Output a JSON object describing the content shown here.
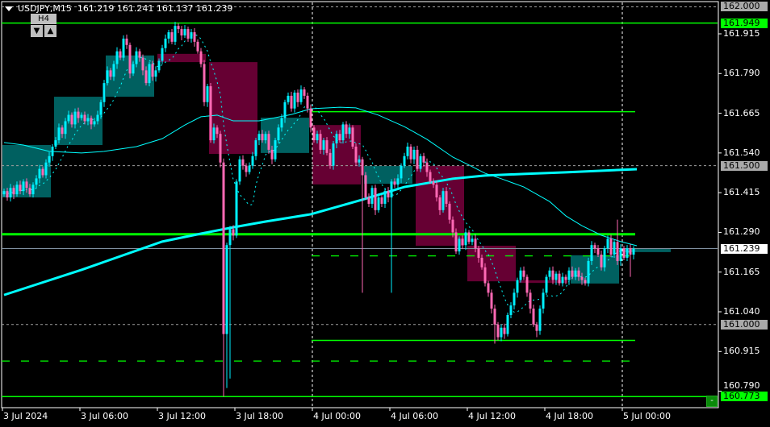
{
  "header": {
    "symbol": "USDJPY,M15",
    "open": "161.219",
    "high": "161.241",
    "low": "161.137",
    "close": "161.239"
  },
  "timeframe_widget": {
    "label": "H4",
    "down": "▼",
    "up": "▲"
  },
  "colors": {
    "bull": "#00f0ff",
    "bear": "#ff69b4",
    "box_bull": "#006060",
    "box_bear": "#660033",
    "level": "#00ff00",
    "grid": "#a0a0a0",
    "ma": "#00ffff"
  },
  "price_axis": {
    "ticks": [
      "161.915",
      "161.790",
      "161.665",
      "161.540",
      "161.415",
      "161.290",
      "161.165",
      "161.040",
      "160.915",
      "160.790"
    ],
    "markers": [
      {
        "value": "162.000",
        "style": "gray"
      },
      {
        "value": "161.949",
        "style": "green"
      },
      {
        "value": "161.500",
        "style": "gray"
      },
      {
        "value": "161.239",
        "style": "white"
      },
      {
        "value": "161.000",
        "style": "gray"
      },
      {
        "value": "160.773",
        "style": "green"
      }
    ]
  },
  "time_axis": [
    {
      "label": "3 Jul 2024",
      "bar": 0
    },
    {
      "label": "3 Jul 06:00",
      "bar": 24
    },
    {
      "label": "3 Jul 12:00",
      "bar": 48
    },
    {
      "label": "3 Jul 18:00",
      "bar": 72
    },
    {
      "label": "4 Jul 00:00",
      "bar": 96
    },
    {
      "label": "4 Jul 06:00",
      "bar": 120
    },
    {
      "label": "4 Jul 12:00",
      "bar": 144
    },
    {
      "label": "4 Jul 18:00",
      "bar": 168
    },
    {
      "label": "5 Jul 00:00",
      "bar": 192
    }
  ],
  "minus_button": "-",
  "chart_data": {
    "type": "candlestick",
    "start_open": 161.41,
    "closes": [
      161.42,
      161.4,
      161.43,
      161.41,
      161.44,
      161.42,
      161.45,
      161.43,
      161.41,
      161.44,
      161.46,
      161.49,
      161.47,
      161.51,
      161.53,
      161.56,
      161.58,
      161.62,
      161.6,
      161.64,
      161.66,
      161.63,
      161.67,
      161.65,
      161.66,
      161.64,
      161.65,
      161.63,
      161.64,
      161.66,
      161.7,
      161.76,
      161.8,
      161.78,
      161.82,
      161.86,
      161.84,
      161.9,
      161.88,
      161.79,
      161.82,
      161.86,
      161.84,
      161.8,
      161.76,
      161.82,
      161.78,
      161.8,
      161.83,
      161.87,
      161.9,
      161.92,
      161.89,
      161.94,
      161.93,
      161.91,
      161.93,
      161.9,
      161.92,
      161.89,
      161.86,
      161.82,
      161.7,
      161.75,
      161.58,
      161.62,
      161.6,
      161.51,
      160.97,
      161.25,
      161.3,
      161.28,
      161.45,
      161.52,
      161.5,
      161.48,
      161.5,
      161.53,
      161.58,
      161.6,
      161.58,
      161.6,
      161.55,
      161.52,
      161.58,
      161.62,
      161.65,
      161.7,
      161.72,
      161.68,
      161.73,
      161.7,
      161.74,
      161.72,
      161.68,
      161.62,
      161.58,
      161.6,
      161.55,
      161.58,
      161.54,
      161.5,
      161.57,
      161.6,
      161.58,
      161.63,
      161.6,
      161.62,
      161.56,
      161.51,
      161.52,
      161.47,
      161.4,
      161.38,
      161.43,
      161.36,
      161.4,
      161.38,
      161.42,
      161.4,
      161.45,
      161.44,
      161.46,
      161.5,
      161.53,
      161.56,
      161.52,
      161.55,
      161.49,
      161.53,
      161.51,
      161.48,
      161.45,
      161.44,
      161.4,
      161.36,
      161.42,
      161.38,
      161.33,
      161.29,
      161.23,
      161.27,
      161.25,
      161.29,
      161.26,
      161.27,
      161.24,
      161.21,
      161.18,
      161.13,
      161.1,
      161.05,
      161.0,
      160.96,
      160.99,
      160.97,
      161.03,
      161.06,
      161.1,
      161.14,
      161.17,
      161.15,
      161.1,
      161.05,
      161.0,
      160.98,
      161.05,
      161.1,
      161.15,
      161.17,
      161.14,
      161.16,
      161.13,
      161.15,
      161.14,
      161.17,
      161.15,
      161.17,
      161.15,
      161.14,
      161.13,
      161.2,
      161.25,
      161.24,
      161.22,
      161.18,
      161.24,
      161.27,
      161.22,
      161.26,
      161.2,
      161.24,
      161.21,
      161.24,
      161.22,
      161.239
    ],
    "wick_extremes": [
      {
        "bar": 68,
        "low": 160.773
      },
      {
        "bar": 69,
        "low": 160.8
      },
      {
        "bar": 70,
        "low": 160.83
      },
      {
        "bar": 111,
        "low": 161.1
      },
      {
        "bar": 120,
        "low": 161.1
      },
      {
        "bar": 152,
        "low": 160.94
      },
      {
        "bar": 165,
        "low": 160.96
      },
      {
        "bar": 190,
        "high": 161.33
      },
      {
        "bar": 194,
        "low": 161.15
      }
    ],
    "h4_boxes": [
      {
        "bar": 0,
        "top": 161.565,
        "bottom": 161.4,
        "dir": "bull"
      },
      {
        "bar": 16,
        "top": 161.717,
        "bottom": 161.565,
        "dir": "bull"
      },
      {
        "bar": 32,
        "top": 161.847,
        "bottom": 161.717,
        "dir": "bull"
      },
      {
        "bar": 48,
        "top": 161.852,
        "bottom": 161.826,
        "dir": "bear"
      },
      {
        "bar": 64,
        "top": 161.826,
        "bottom": 161.537,
        "dir": "bear"
      },
      {
        "bar": 80,
        "top": 161.651,
        "bottom": 161.54,
        "dir": "bull"
      },
      {
        "bar": 96,
        "top": 161.628,
        "bottom": 161.441,
        "dir": "bear"
      },
      {
        "bar": 112,
        "top": 161.499,
        "bottom": 161.443,
        "dir": "bull"
      },
      {
        "bar": 128,
        "top": 161.499,
        "bottom": 161.248,
        "dir": "bear"
      },
      {
        "bar": 144,
        "top": 161.248,
        "bottom": 161.136,
        "dir": "bear"
      },
      {
        "bar": 160,
        "top": 161.139,
        "bottom": 161.131,
        "dir": "bear"
      },
      {
        "bar": 176,
        "top": 161.218,
        "bottom": 161.129,
        "dir": "bull"
      },
      {
        "bar": 192,
        "top": 161.238,
        "bottom": 161.228,
        "dir": "bull"
      }
    ],
    "levels": [
      {
        "price": 162.0,
        "style": "gray-dash",
        "from": 0,
        "to": "end"
      },
      {
        "price": 161.949,
        "style": "green",
        "from": 0,
        "to": "end"
      },
      {
        "price": 161.67,
        "style": "green",
        "from": 96,
        "to": 196
      },
      {
        "price": 161.5,
        "style": "gray-dash",
        "from": 0,
        "to": "end"
      },
      {
        "price": 161.284,
        "style": "green-thick",
        "from": 0,
        "to": 196
      },
      {
        "price": 161.239,
        "style": "bid",
        "from": 0,
        "to": "end"
      },
      {
        "price": 161.216,
        "style": "green-dash",
        "from": 96,
        "to": 196
      },
      {
        "price": 161.0,
        "style": "gray-dash",
        "from": 0,
        "to": "end"
      },
      {
        "price": 160.95,
        "style": "green",
        "from": 96,
        "to": 196
      },
      {
        "price": 160.885,
        "style": "green-dash",
        "from": 0,
        "to": 196
      },
      {
        "price": 160.773,
        "style": "green",
        "from": 0,
        "to": "end"
      }
    ],
    "separators": [
      96,
      192
    ],
    "ma_slow": [
      [
        0,
        161.093
      ],
      [
        24,
        161.172
      ],
      [
        49,
        161.261
      ],
      [
        61,
        161.286
      ],
      [
        71,
        161.306
      ],
      [
        81,
        161.324
      ],
      [
        95,
        161.347
      ],
      [
        111,
        161.393
      ],
      [
        124,
        161.433
      ],
      [
        139,
        161.459
      ],
      [
        149,
        161.469
      ],
      [
        161,
        161.474
      ],
      [
        174,
        161.479
      ],
      [
        196,
        161.489
      ]
    ],
    "ma_mid": [
      [
        0,
        161.573
      ],
      [
        6,
        161.565
      ],
      [
        14,
        161.545
      ],
      [
        24,
        161.54
      ],
      [
        31,
        161.545
      ],
      [
        41,
        161.56
      ],
      [
        49,
        161.585
      ],
      [
        56,
        161.628
      ],
      [
        61,
        161.654
      ],
      [
        66,
        161.659
      ],
      [
        71,
        161.641
      ],
      [
        79,
        161.641
      ],
      [
        89,
        161.661
      ],
      [
        95,
        161.679
      ],
      [
        104,
        161.684
      ],
      [
        109,
        161.682
      ],
      [
        116,
        161.659
      ],
      [
        124,
        161.623
      ],
      [
        131,
        161.583
      ],
      [
        139,
        161.527
      ],
      [
        144,
        161.502
      ],
      [
        149,
        161.476
      ],
      [
        154,
        161.459
      ],
      [
        161,
        161.433
      ],
      [
        169,
        161.387
      ],
      [
        174,
        161.342
      ],
      [
        179,
        161.311
      ],
      [
        185,
        161.281
      ],
      [
        191,
        161.261
      ],
      [
        196,
        161.248
      ]
    ]
  }
}
